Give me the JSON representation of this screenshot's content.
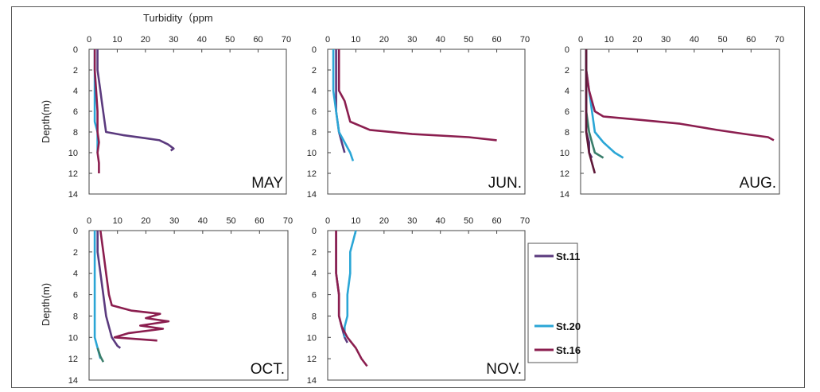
{
  "figure": {
    "x_axis_title": "Turbidity（ppm",
    "y_axis_title": "Depth(m)"
  },
  "chart_data": {
    "type": "line",
    "x_range": [
      0,
      70
    ],
    "x_ticks": [
      0,
      10,
      20,
      30,
      40,
      50,
      60,
      70
    ],
    "y_range": [
      0,
      14
    ],
    "y_ticks": [
      0,
      2,
      4,
      6,
      8,
      10,
      12,
      14
    ],
    "y_inverted": true,
    "legend": [
      {
        "name": "St.11",
        "color": "#5b3a7e"
      },
      {
        "name": "St.20",
        "color": "#2ba6d6"
      },
      {
        "name": "St.16",
        "color": "#8b1e4f"
      }
    ],
    "panels": [
      {
        "month": "MAY",
        "series": [
          {
            "color": "#5b3a7e",
            "points": [
              [
                3,
                0
              ],
              [
                3,
                1
              ],
              [
                3,
                2
              ],
              [
                3.5,
                3
              ],
              [
                4,
                4
              ],
              [
                4.5,
                5
              ],
              [
                5,
                6
              ],
              [
                5.5,
                7
              ],
              [
                6,
                8
              ],
              [
                12,
                8.3
              ],
              [
                20,
                8.6
              ],
              [
                25,
                8.8
              ],
              [
                28,
                9.2
              ],
              [
                30,
                9.6
              ],
              [
                29,
                9.8
              ]
            ]
          },
          {
            "color": "#2ba6d6",
            "points": [
              [
                2,
                0
              ],
              [
                2,
                2
              ],
              [
                2,
                4
              ],
              [
                2,
                6
              ],
              [
                2,
                7
              ],
              [
                3,
                8
              ],
              [
                3,
                9
              ],
              [
                3,
                10
              ]
            ]
          },
          {
            "color": "#8b1e4f",
            "points": [
              [
                2,
                0
              ],
              [
                2,
                2
              ],
              [
                2.5,
                4
              ],
              [
                3,
                6
              ],
              [
                3,
                8
              ],
              [
                3.5,
                9
              ],
              [
                3,
                10
              ],
              [
                3.5,
                11
              ],
              [
                3.5,
                12
              ]
            ]
          }
        ]
      },
      {
        "month": "JUN.",
        "series": [
          {
            "color": "#5b3a7e",
            "points": [
              [
                3,
                0
              ],
              [
                3,
                2
              ],
              [
                3,
                4
              ],
              [
                3,
                6
              ],
              [
                4,
                8
              ],
              [
                5,
                9
              ],
              [
                6,
                10
              ]
            ]
          },
          {
            "color": "#2ba6d6",
            "points": [
              [
                2,
                0
              ],
              [
                2,
                2
              ],
              [
                2,
                4
              ],
              [
                3,
                6
              ],
              [
                4,
                8
              ],
              [
                6,
                9
              ],
              [
                8,
                10
              ],
              [
                9,
                10.8
              ]
            ]
          },
          {
            "color": "#8b1e4f",
            "points": [
              [
                4,
                0
              ],
              [
                4,
                2
              ],
              [
                4,
                4
              ],
              [
                6,
                5
              ],
              [
                7,
                6
              ],
              [
                8,
                7
              ],
              [
                15,
                7.8
              ],
              [
                30,
                8.2
              ],
              [
                50,
                8.5
              ],
              [
                60,
                8.8
              ]
            ]
          }
        ]
      },
      {
        "month": "AUG.",
        "series": [
          {
            "color": "#5b3a7e",
            "points": [
              [
                2,
                0
              ],
              [
                2,
                2
              ],
              [
                2,
                4
              ],
              [
                2,
                6
              ],
              [
                2,
                8
              ],
              [
                3,
                9
              ],
              [
                3,
                10
              ],
              [
                4,
                10.5
              ]
            ]
          },
          {
            "color": "#2ba6d6",
            "points": [
              [
                2,
                0
              ],
              [
                2,
                2
              ],
              [
                3,
                4
              ],
              [
                4,
                6
              ],
              [
                5,
                8
              ],
              [
                8,
                9
              ],
              [
                12,
                10
              ],
              [
                15,
                10.5
              ]
            ]
          },
          {
            "color": "#8b1e4f",
            "points": [
              [
                2,
                0
              ],
              [
                2,
                2
              ],
              [
                3,
                4
              ],
              [
                5,
                6
              ],
              [
                8,
                6.5
              ],
              [
                20,
                6.8
              ],
              [
                35,
                7.2
              ],
              [
                48,
                7.8
              ],
              [
                58,
                8.2
              ],
              [
                66,
                8.5
              ],
              [
                68,
                8.8
              ]
            ]
          },
          {
            "color": "#3a7d6a",
            "points": [
              [
                2,
                0
              ],
              [
                2,
                3
              ],
              [
                2,
                6
              ],
              [
                3,
                8
              ],
              [
                4,
                9
              ],
              [
                5,
                10
              ],
              [
                8,
                10.5
              ]
            ]
          },
          {
            "color": "#5e1838",
            "points": [
              [
                2,
                0
              ],
              [
                2,
                4
              ],
              [
                2,
                8
              ],
              [
                3,
                10
              ],
              [
                4,
                11
              ],
              [
                5,
                12
              ]
            ]
          }
        ]
      },
      {
        "month": "OCT.",
        "series": [
          {
            "color": "#5b3a7e",
            "points": [
              [
                3,
                0
              ],
              [
                3,
                2
              ],
              [
                4,
                4
              ],
              [
                5,
                6
              ],
              [
                6,
                8
              ],
              [
                7,
                9
              ],
              [
                8,
                10
              ],
              [
                10,
                10.8
              ],
              [
                11,
                11
              ]
            ]
          },
          {
            "color": "#2ba6d6",
            "points": [
              [
                2,
                0
              ],
              [
                2,
                2
              ],
              [
                2,
                4
              ],
              [
                2,
                6
              ],
              [
                2,
                8
              ],
              [
                2,
                10
              ],
              [
                3,
                11
              ],
              [
                4,
                12
              ]
            ]
          },
          {
            "color": "#8b1e4f",
            "points": [
              [
                4,
                0
              ],
              [
                5,
                2
              ],
              [
                6,
                4
              ],
              [
                7,
                6
              ],
              [
                8,
                7
              ],
              [
                15,
                7.5
              ],
              [
                25,
                7.8
              ],
              [
                20,
                8.2
              ],
              [
                28,
                8.5
              ],
              [
                18,
                8.9
              ],
              [
                26,
                9.2
              ],
              [
                14,
                9.6
              ],
              [
                9,
                10
              ],
              [
                24,
                10.3
              ]
            ]
          },
          {
            "color": "#3a7d6a",
            "points": [
              [
                3,
                11
              ],
              [
                4,
                11.8
              ],
              [
                5,
                12.3
              ]
            ]
          }
        ]
      },
      {
        "month": "NOV.",
        "series": [
          {
            "color": "#5b3a7e",
            "points": [
              [
                3,
                0
              ],
              [
                3,
                2
              ],
              [
                3,
                4
              ],
              [
                4,
                6
              ],
              [
                4,
                8
              ],
              [
                5,
                9
              ],
              [
                6,
                10
              ],
              [
                7,
                10.5
              ]
            ]
          },
          {
            "color": "#2ba6d6",
            "points": [
              [
                10,
                0
              ],
              [
                9,
                1
              ],
              [
                8,
                2
              ],
              [
                8,
                4
              ],
              [
                7,
                6
              ],
              [
                7,
                8
              ],
              [
                6,
                9
              ],
              [
                6,
                10
              ]
            ]
          },
          {
            "color": "#8b1e4f",
            "points": [
              [
                3,
                0
              ],
              [
                3,
                2
              ],
              [
                3,
                4
              ],
              [
                4,
                6
              ],
              [
                4,
                8
              ],
              [
                5,
                9
              ],
              [
                7,
                10
              ],
              [
                10,
                11
              ],
              [
                12,
                12
              ],
              [
                14,
                12.7
              ]
            ]
          }
        ]
      }
    ]
  }
}
